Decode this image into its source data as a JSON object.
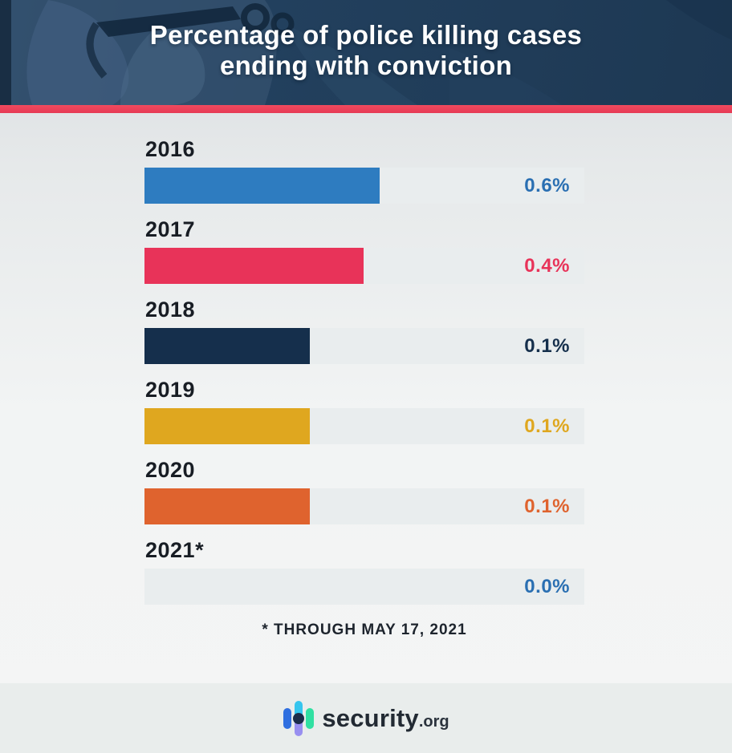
{
  "header": {
    "title_line1": "Percentage of police killing cases",
    "title_line2": "ending with conviction"
  },
  "chart_data": {
    "type": "bar",
    "orientation": "horizontal",
    "title": "Percentage of police killing cases ending with conviction",
    "categories": [
      "2016",
      "2017",
      "2018",
      "2019",
      "2020",
      "2021*"
    ],
    "values": [
      0.6,
      0.4,
      0.1,
      0.1,
      0.1,
      0.0
    ],
    "unit": "%",
    "xlim": [
      0,
      1.2
    ],
    "grid": false,
    "legend": false,
    "footnote": "* THROUGH MAY 17, 2021",
    "rows": [
      {
        "year": "2016",
        "value": 0.6,
        "value_label": "0.6%",
        "color": "#2e7cc0",
        "value_color": "#2a6fb2",
        "bar_width_pct": 53.5
      },
      {
        "year": "2017",
        "value": 0.4,
        "value_label": "0.4%",
        "color": "#e83359",
        "value_color": "#e83359",
        "bar_width_pct": 49.8
      },
      {
        "year": "2018",
        "value": 0.1,
        "value_label": "0.1%",
        "color": "#152f4c",
        "value_color": "#152f4c",
        "bar_width_pct": 37.5
      },
      {
        "year": "2019",
        "value": 0.1,
        "value_label": "0.1%",
        "color": "#dfa71f",
        "value_color": "#dfa71f",
        "bar_width_pct": 37.5
      },
      {
        "year": "2020",
        "value": 0.1,
        "value_label": "0.1%",
        "color": "#df632e",
        "value_color": "#df632e",
        "bar_width_pct": 37.5
      },
      {
        "year": "2021*",
        "value": 0.0,
        "value_label": "0.0%",
        "color": "#2d74b5",
        "value_color": "#2a6fb2",
        "bar_width_pct": 0
      }
    ]
  },
  "footer": {
    "brand_name": "security",
    "brand_tld": ".org"
  },
  "colors": {
    "accent_stripe": "#e84057",
    "header_navy": "#203c58",
    "bar_track": "#e9edee",
    "footer_band": "#e9edec",
    "logo_left_capsule": "#2f6fe0",
    "logo_mid_top": "#35c5ee",
    "logo_mid_bottom": "#988ff0",
    "logo_dot": "#1b2c4a",
    "logo_right_capsule": "#30e0a2"
  }
}
